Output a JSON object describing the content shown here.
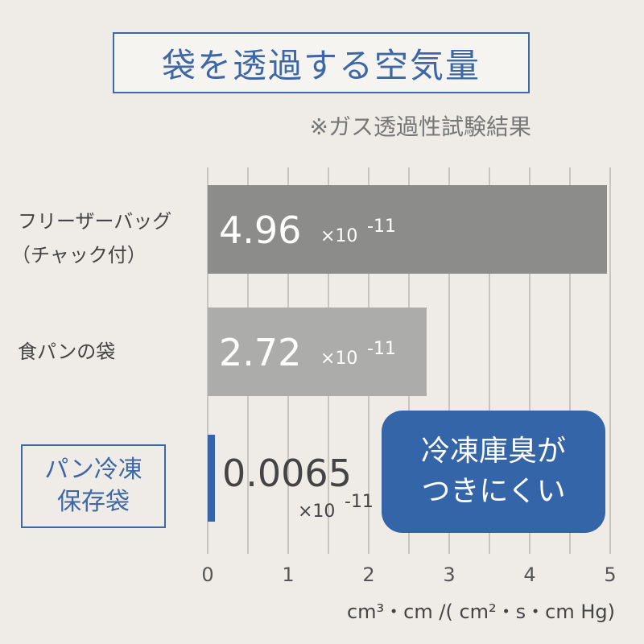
{
  "header": {
    "title": "袋を透過する空気量",
    "subtitle": "※ガス透過性試験結果"
  },
  "callout": {
    "line1": "冷凍庫臭が",
    "line2": "つきにくい"
  },
  "colors": {
    "accent": "#3465a8",
    "bar_dark": "#8c8c8a",
    "bar_light": "#acacaa",
    "background": "#efece8"
  },
  "chart_data": {
    "type": "bar",
    "orientation": "horizontal",
    "categories": [
      {
        "line1": "フリーザーバッグ",
        "line2": "（チャック付）"
      },
      {
        "line1": "食パンの袋",
        "line2": ""
      },
      {
        "line1": "パン冷凍",
        "line2": "保存袋"
      }
    ],
    "values": [
      4.96,
      2.72,
      0.0065
    ],
    "value_labels": [
      "4.96",
      "2.72",
      "0.0065"
    ],
    "multiplier_label": "×10",
    "exponent_label": "-11",
    "xlim": [
      0,
      5
    ],
    "xticks": [
      "0",
      "1",
      "2",
      "3",
      "4",
      "5"
    ],
    "xlabel": "cm³・cm /( cm²・s・cm Hg)",
    "grid": "vertical, every 0.5",
    "highlight_category": 2
  }
}
